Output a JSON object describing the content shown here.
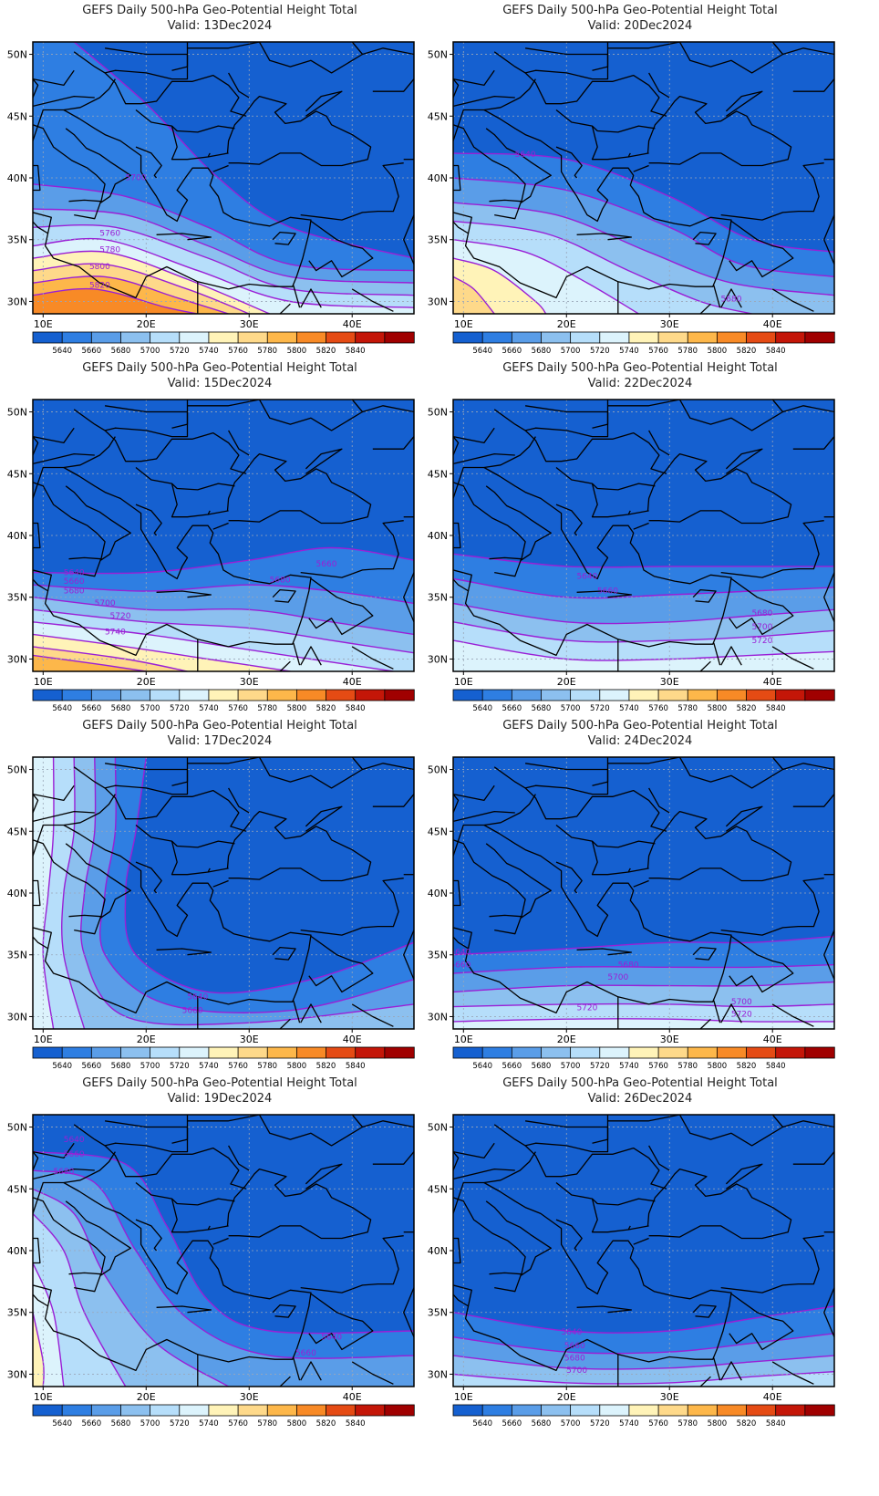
{
  "figure": {
    "title_prefix": "GEFS Daily 500-hPa Geo-Potential Height Total",
    "valid_label": "Valid:"
  },
  "axes": {
    "lon_ticks": [
      "10E",
      "20E",
      "30E",
      "40E"
    ],
    "lat_ticks": [
      "50N",
      "45N",
      "40N",
      "35N",
      "30N"
    ],
    "lon_range": [
      9,
      46
    ],
    "lat_range": [
      29,
      51
    ]
  },
  "colorbar": {
    "labels": [
      "5640",
      "5660",
      "5680",
      "5700",
      "5720",
      "5740",
      "5760",
      "5780",
      "5800",
      "5820",
      "5840"
    ],
    "colors": [
      "#1560d0",
      "#2e7ee2",
      "#5a9de8",
      "#8cc0ef",
      "#b6defa",
      "#dcf3fc",
      "#fff3b8",
      "#fed98a",
      "#fdb74a",
      "#f88a26",
      "#e54b14",
      "#c41608",
      "#a00000"
    ]
  },
  "panels": [
    {
      "title": "GEFS Daily 500-hPa Geo-Potential Height Total",
      "date": "13Dec2024",
      "contour_labels": [
        "5700",
        "5760",
        "5780",
        "5800",
        "5820"
      ]
    },
    {
      "title": "GEFS Daily 500-hPa Geo-Potential Height Total",
      "date": "20Dec2024",
      "contour_labels": [
        "5640",
        "5680"
      ]
    },
    {
      "title": "GEFS Daily 500-hPa Geo-Potential Height Total",
      "date": "15Dec2024",
      "contour_labels": [
        "5640",
        "5660",
        "5680",
        "5700",
        "5720",
        "5740",
        "5680",
        "5660"
      ]
    },
    {
      "title": "GEFS Daily 500-hPa Geo-Potential Height Total",
      "date": "22Dec2024",
      "contour_labels": [
        "5640",
        "5660",
        "5680",
        "5700",
        "5720"
      ]
    },
    {
      "title": "GEFS Daily 500-hPa Geo-Potential Height Total",
      "date": "17Dec2024",
      "contour_labels": [
        "5640",
        "5660"
      ]
    },
    {
      "title": "GEFS Daily 500-hPa Geo-Potential Height Total",
      "date": "24Dec2024",
      "contour_labels": [
        "5640",
        "5660",
        "5680",
        "5700",
        "5720",
        "5700",
        "5720"
      ]
    },
    {
      "title": "GEFS Daily 500-hPa Geo-Potential Height Total",
      "date": "19Dec2024",
      "contour_labels": [
        "5640",
        "5660",
        "5680",
        "5640",
        "5660"
      ]
    },
    {
      "title": "GEFS Daily 500-hPa Geo-Potential Height Total",
      "date": "26Dec2024",
      "contour_labels": [
        "5640",
        "5660",
        "5680",
        "5700"
      ]
    }
  ]
}
